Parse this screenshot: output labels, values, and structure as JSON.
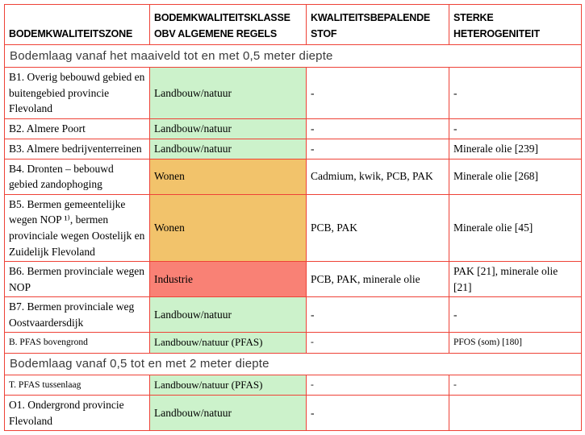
{
  "colors": {
    "border": "#EE4237",
    "landbouw": "#CCF2CB",
    "wonen": "#F2C36B",
    "industrie": "#F98175"
  },
  "header": {
    "col1": "BODEMKWALITEITSZONE",
    "col2": "BODEMKWALITEITSKLASSE OBV ALGEMENE REGELS",
    "col3": "KWALITEITSBEPALENDE STOF",
    "col4": "STERKE HETEROGENITEIT"
  },
  "sections": {
    "top": "Bodemlaag vanaf het maaiveld tot en met 0,5 meter diepte",
    "bottom": "Bodemlaag vanaf 0,5 tot en met 2 meter diepte"
  },
  "rows": [
    {
      "zone": "B1. Overig bebouwd gebied en buitengebied provincie Flevoland",
      "klasse": "Landbouw/natuur",
      "klasse_color": "landbouw",
      "stof": "-",
      "heterogeniteit": "-"
    },
    {
      "zone": "B2. Almere Poort",
      "klasse": "Landbouw/natuur",
      "klasse_color": "landbouw",
      "stof": "-",
      "heterogeniteit": "-"
    },
    {
      "zone": "B3. Almere bedrijventerreinen",
      "klasse": "Landbouw/natuur",
      "klasse_color": "landbouw",
      "stof": "-",
      "heterogeniteit": "Minerale olie [239]"
    },
    {
      "zone": "B4. Dronten – bebouwd gebied zandophoging",
      "klasse": "Wonen",
      "klasse_color": "wonen",
      "stof": "Cadmium, kwik, PCB, PAK",
      "heterogeniteit": "Minerale olie [268]"
    },
    {
      "zone": "B5. Bermen gemeentelijke wegen NOP ¹⁾, bermen provinciale wegen Oostelijk en Zuidelijk Flevoland",
      "klasse": "Wonen",
      "klasse_color": "wonen",
      "stof": "PCB, PAK",
      "heterogeniteit": "Minerale olie [45]"
    },
    {
      "zone": "B6. Bermen provinciale wegen NOP",
      "klasse": "Industrie",
      "klasse_color": "industrie",
      "stof": "PCB, PAK, minerale olie",
      "heterogeniteit": "PAK [21], minerale olie [21]"
    },
    {
      "zone": "B7. Bermen provinciale weg Oostvaardersdijk",
      "klasse": "Landbouw/natuur",
      "klasse_color": "landbouw",
      "stof": "-",
      "heterogeniteit": "-"
    },
    {
      "zone": "B. PFAS bovengrond",
      "klasse": "Landbouw/natuur (PFAS)",
      "klasse_color": "landbouw",
      "stof": "-",
      "heterogeniteit": "PFOS (som) [180]"
    },
    {
      "zone": "T. PFAS tussenlaag",
      "klasse": "Landbouw/natuur (PFAS)",
      "klasse_color": "landbouw",
      "stof": "-",
      "heterogeniteit": "-"
    },
    {
      "zone": "O1. Ondergrond provincie Flevoland",
      "klasse": "Landbouw/natuur",
      "klasse_color": "landbouw",
      "stof": "-",
      "heterogeniteit": ""
    }
  ]
}
